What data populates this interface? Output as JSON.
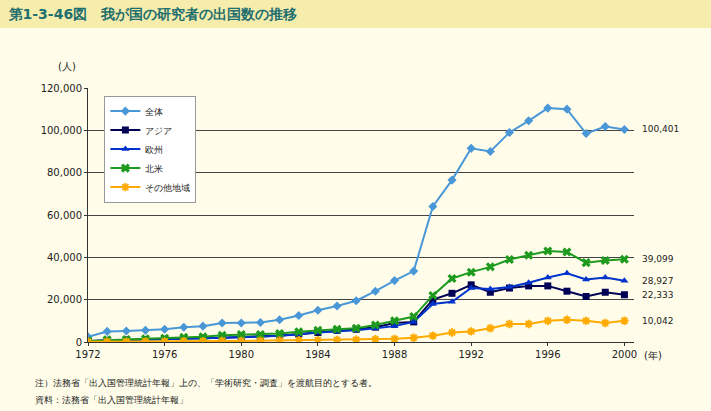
{
  "chart_data": {
    "type": "line",
    "title": "第1-3-46図　我が国の研究者の出国数の推移",
    "ylabel": "(人)",
    "xlabel": "(年)",
    "notes": [
      "注）法務省「出入国管理統計年報」上の、「学術研究・調査」を渡航目的とする者。",
      "資料：法務省「出入国管理統計年報」"
    ],
    "x": [
      1972,
      1973,
      1974,
      1975,
      1976,
      1977,
      1978,
      1979,
      1980,
      1981,
      1982,
      1983,
      1984,
      1985,
      1986,
      1987,
      1988,
      1989,
      1990,
      1991,
      1992,
      1993,
      1994,
      1995,
      1996,
      1997,
      1998,
      1999,
      2000
    ],
    "xlim": [
      1972,
      2000.5
    ],
    "xticks": [
      1972,
      1976,
      1980,
      1984,
      1988,
      1992,
      1996,
      2000
    ],
    "ylim": [
      0,
      120000
    ],
    "yticks": [
      0,
      {
        "value": 20000,
        "label": "20,000"
      },
      {
        "value": 40000,
        "label": "40,000"
      },
      {
        "value": 60000,
        "label": "60,000"
      },
      {
        "value": 80000,
        "label": "80,000"
      },
      {
        "value": 100000,
        "label": "100,000"
      },
      {
        "value": 120000,
        "label": "120,000"
      }
    ],
    "grid": true,
    "legend": "upper left",
    "series": [
      {
        "name": "全体",
        "color": "#4a97d8",
        "marker": "diamond",
        "values": [
          2500,
          5000,
          5200,
          5500,
          6000,
          7000,
          7500,
          9000,
          9000,
          9200,
          10500,
          12500,
          15000,
          17000,
          19500,
          24000,
          29000,
          33500,
          64000,
          76500,
          91500,
          90000,
          99000,
          104500,
          110500,
          110000,
          98500,
          101800,
          100401
        ],
        "value_labels": [
          null,
          null,
          null,
          null,
          null,
          null,
          null,
          null,
          null,
          null,
          null,
          null,
          null,
          null,
          null,
          null,
          null,
          null,
          null,
          null,
          null,
          null,
          null,
          null,
          null,
          null,
          null,
          null,
          "100,401"
        ]
      },
      {
        "name": "アジア",
        "color": "#000055",
        "marker": "square",
        "values": [
          300,
          800,
          1000,
          1200,
          1300,
          1500,
          1800,
          2000,
          2300,
          2500,
          3000,
          3800,
          4500,
          5500,
          6000,
          7000,
          9000,
          9500,
          20000,
          23000,
          27000,
          23500,
          25500,
          26500,
          26500,
          24000,
          21500,
          23500,
          22333
        ],
        "value_labels": [
          null,
          null,
          null,
          null,
          null,
          null,
          null,
          null,
          null,
          null,
          null,
          null,
          null,
          null,
          null,
          null,
          null,
          null,
          null,
          null,
          null,
          null,
          null,
          null,
          null,
          null,
          null,
          null,
          "22,333"
        ]
      },
      {
        "name": "欧州",
        "color": "#0033cc",
        "marker": "triangle",
        "values": [
          400,
          900,
          1000,
          1100,
          1300,
          1600,
          1800,
          2200,
          2300,
          2500,
          3000,
          3500,
          4500,
          5000,
          5500,
          6500,
          7500,
          9500,
          18000,
          19000,
          25500,
          25000,
          26000,
          28000,
          30500,
          32500,
          29500,
          30500,
          28927
        ],
        "value_labels": [
          null,
          null,
          null,
          null,
          null,
          null,
          null,
          null,
          null,
          null,
          null,
          null,
          null,
          null,
          null,
          null,
          null,
          null,
          null,
          null,
          null,
          null,
          null,
          null,
          null,
          null,
          null,
          null,
          "28,927"
        ]
      },
      {
        "name": "北米",
        "color": "#1e9a1e",
        "marker": "cross",
        "values": [
          500,
          1000,
          1200,
          1500,
          1800,
          2200,
          2500,
          3200,
          3500,
          3500,
          4000,
          4800,
          5500,
          6000,
          6500,
          8000,
          10000,
          12000,
          22000,
          30000,
          33000,
          35500,
          39000,
          41000,
          43000,
          42500,
          37500,
          38500,
          39099
        ],
        "value_labels": [
          null,
          null,
          null,
          null,
          null,
          null,
          null,
          null,
          null,
          null,
          null,
          null,
          null,
          null,
          null,
          null,
          null,
          null,
          null,
          null,
          null,
          null,
          null,
          null,
          null,
          null,
          null,
          null,
          "39,099"
        ]
      },
      {
        "name": "その他地域",
        "color": "#ffaa00",
        "marker": "asterisk",
        "values": [
          100,
          200,
          200,
          300,
          300,
          400,
          400,
          500,
          500,
          600,
          700,
          800,
          900,
          1000,
          1100,
          1300,
          1500,
          2000,
          3000,
          4500,
          5000,
          6500,
          8500,
          8500,
          10000,
          10500,
          10000,
          9000,
          10042
        ],
        "value_labels": [
          null,
          null,
          null,
          null,
          null,
          null,
          null,
          null,
          null,
          null,
          null,
          null,
          null,
          null,
          null,
          null,
          null,
          null,
          null,
          null,
          null,
          null,
          null,
          null,
          null,
          null,
          null,
          null,
          "10,042"
        ]
      }
    ]
  }
}
